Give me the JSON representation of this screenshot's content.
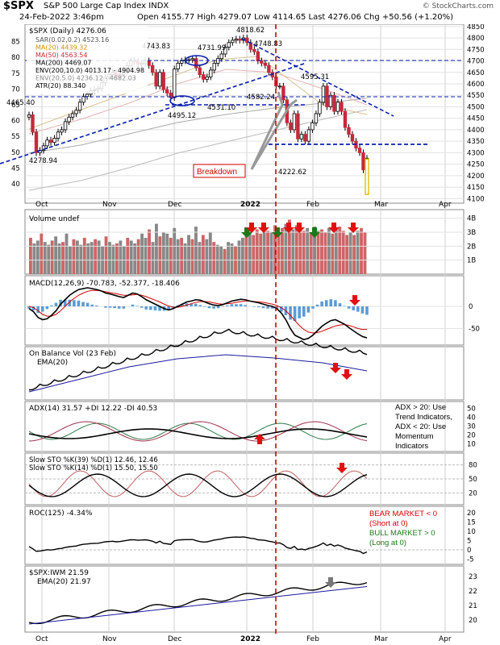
{
  "header": {
    "symbol": "$SPX",
    "name": "S&P 500 Large Cap Index  INDX",
    "date": "24-Feb-2022 3:46pm",
    "ohlc": "Open 4155.77   High 4279.07   Low 4114.65   Last 4276.06   Chg +50.56 (+1.20%)",
    "watermark": "© StockCharts.com"
  },
  "colors": {
    "up": "#ffffff",
    "down": "#c8283c",
    "green_arrow": "#1a7a1a",
    "red_arrow": "#e01010",
    "trend": "#0a1fb0",
    "breakdown_line": "#d40000"
  },
  "chart_data": [
    {
      "type": "line",
      "panel": "price",
      "title": "$SPX (Daily) 4276.06",
      "legend": [
        "SAR(0.02,0.2) 4523.16",
        "MA(20) 4439.32",
        "MA(50) 4563.54",
        "MA(200) 4469.07",
        "ENV(200,10.0) 4013.17 - 4904.98",
        "ENV(20,5.0) 4236.12 - 4682.03",
        "ATR(20) 88.340"
      ],
      "y_ticks_right": [
        4100,
        4150,
        4200,
        4250,
        4300,
        4350,
        4400,
        4450,
        4500,
        4550,
        4600,
        4650,
        4700,
        4750,
        4800,
        4850
      ],
      "y_ticks_left_atr": [
        40,
        45,
        50,
        55,
        60,
        65,
        70,
        75,
        80,
        85
      ],
      "ylim": [
        4080,
        4860
      ],
      "x_labels": [
        "Oct",
        "Nov",
        "Dec",
        "2022",
        "Feb",
        "Mar",
        "Apr"
      ],
      "close": [
        4465,
        4390,
        4300,
        4310,
        4330,
        4355,
        4345,
        4363,
        4390,
        4400,
        4435,
        4455,
        4470,
        4485,
        4520,
        4545,
        4555,
        4570,
        4575,
        4580,
        4605,
        4630,
        4640,
        4650,
        4630,
        4640,
        4660,
        4680,
        4700,
        4697,
        4685,
        4690,
        4700,
        4680,
        4650,
        4590,
        4650,
        4575,
        4560,
        4540,
        4665,
        4690,
        4700,
        4705,
        4705,
        4710,
        4670,
        4640,
        4620,
        4630,
        4660,
        4690,
        4710,
        4730,
        4760,
        4780,
        4790,
        4795,
        4790,
        4800,
        4780,
        4750,
        4740,
        4700,
        4690,
        4680,
        4650,
        4630,
        4590,
        4590,
        4530,
        4430,
        4400,
        4470,
        4360,
        4380,
        4350,
        4400,
        4430,
        4470,
        4520,
        4590,
        4500,
        4550,
        4480,
        4520,
        4480,
        4410,
        4380,
        4350,
        4320,
        4300,
        4225,
        4276
      ],
      "annotations": [
        "4278.94",
        "4465.40",
        "4743.83",
        "4731.99",
        "4818.62",
        "4748.83",
        "4582.24",
        "4495.12",
        "4531.10",
        "4595.31",
        "4222.62",
        "Breakdown"
      ]
    },
    {
      "type": "bar",
      "panel": "volume",
      "title": "Volume undef",
      "y_ticks": [
        "1B",
        "2B",
        "3B",
        "4B"
      ],
      "values_billions": [
        2.6,
        2.2,
        2.4,
        2.9,
        2.3,
        2.1,
        2.4,
        2.7,
        2.2,
        2.3,
        2.9,
        2.0,
        2.5,
        2.4,
        2.1,
        2.6,
        2.2,
        2.3,
        2.5,
        2.4,
        2.0,
        2.7,
        2.3,
        2.1,
        2.2,
        2.4,
        2.0,
        2.6,
        2.4,
        2.2,
        2.5,
        2.9,
        2.6,
        3.2,
        2.3,
        3.6,
        2.7,
        3.0,
        2.9,
        2.6,
        3.3,
        2.5,
        2.6,
        2.2,
        2.8,
        2.5,
        3.4,
        2.3,
        2.8,
        2.5,
        3.0,
        2.3,
        2.1,
        2.0,
        1.8,
        2.3,
        2.2,
        2.0,
        2.4,
        2.6,
        2.9,
        3.1,
        2.8,
        3.2,
        2.9,
        3.4,
        3.1,
        3.0,
        3.5,
        3.0,
        3.3,
        3.6,
        3.9,
        3.2,
        3.5,
        3.4,
        3.1,
        3.3,
        3.0,
        3.4,
        3.1,
        3.2,
        3.0,
        3.3,
        2.9,
        3.2,
        3.4,
        3.1,
        2.8,
        3.0,
        2.8,
        3.1,
        3.3,
        3.0
      ]
    },
    {
      "type": "line",
      "panel": "macd",
      "title": "MACD(12,26,9) -70.783, -52.377, -18.406",
      "y_ticks": [
        0,
        -50
      ],
      "macd": [
        -5,
        -12,
        -25,
        -30,
        -28,
        -20,
        -10,
        5,
        15,
        25,
        32,
        38,
        40,
        42,
        40,
        38,
        35,
        30,
        28,
        25,
        22,
        20,
        25,
        30,
        28,
        22,
        15,
        10,
        5,
        0,
        -5,
        -8,
        -5,
        0,
        5,
        10,
        12,
        15,
        14,
        10,
        6,
        3,
        2,
        4,
        8,
        12,
        14,
        16,
        15,
        12,
        10,
        8,
        5,
        2,
        0,
        -5,
        -15,
        -30,
        -50,
        -65,
        -70,
        -75,
        -72,
        -65,
        -55,
        -45,
        -38,
        -32,
        -30,
        -35,
        -40,
        -48,
        -55,
        -62,
        -68,
        -71
      ],
      "signal": [
        0,
        -3,
        -10,
        -18,
        -22,
        -22,
        -18,
        -10,
        0,
        10,
        18,
        25,
        30,
        34,
        36,
        36,
        35,
        33,
        31,
        29,
        27,
        25,
        25,
        26,
        27,
        25,
        22,
        18,
        14,
        10,
        5,
        1,
        -2,
        -2,
        0,
        3,
        6,
        9,
        11,
        11,
        10,
        8,
        6,
        5,
        6,
        7,
        9,
        11,
        12,
        12,
        11,
        10,
        9,
        7,
        5,
        2,
        -3,
        -10,
        -20,
        -32,
        -43,
        -52,
        -58,
        -60,
        -59,
        -56,
        -52,
        -48,
        -44,
        -42,
        -41,
        -43,
        -46,
        -50,
        -52,
        -52
      ]
    },
    {
      "type": "line",
      "panel": "obv",
      "title": "On Balance Vol (23 Feb)",
      "legend": [
        "EMA(20)"
      ]
    },
    {
      "type": "line",
      "panel": "adx",
      "title": "ADX(14) 31.57  +DI 12.22  -DI 40.53",
      "y_ticks": [
        10,
        20,
        30,
        40,
        50
      ],
      "note": [
        "ADX > 20: Use",
        "Trend Indicators,",
        "ADX < 20: Use",
        "Momentum",
        "Indicators"
      ]
    },
    {
      "type": "line",
      "panel": "stochastic",
      "legend": [
        "Slow STO %K(39) %D(1) 12.46, 12.46",
        "Slow STO %K(14) %D(1) 15.50, 15.50"
      ],
      "y_ticks": [
        20,
        50,
        80
      ]
    },
    {
      "type": "line",
      "panel": "roc",
      "title": "ROC(125) -4.34%",
      "y_ticks": [
        -5,
        0,
        5,
        10,
        15,
        20
      ],
      "note": [
        "BEAR MARKET < 0",
        "(Short at 0)",
        "BULL MARKET > 0",
        "(Long at 0)"
      ]
    },
    {
      "type": "line",
      "panel": "ratio",
      "title": "$SPX:IWM 21.59",
      "legend": [
        "EMA(20) 21.97"
      ],
      "y_ticks": [
        20,
        21,
        22,
        23
      ]
    }
  ]
}
